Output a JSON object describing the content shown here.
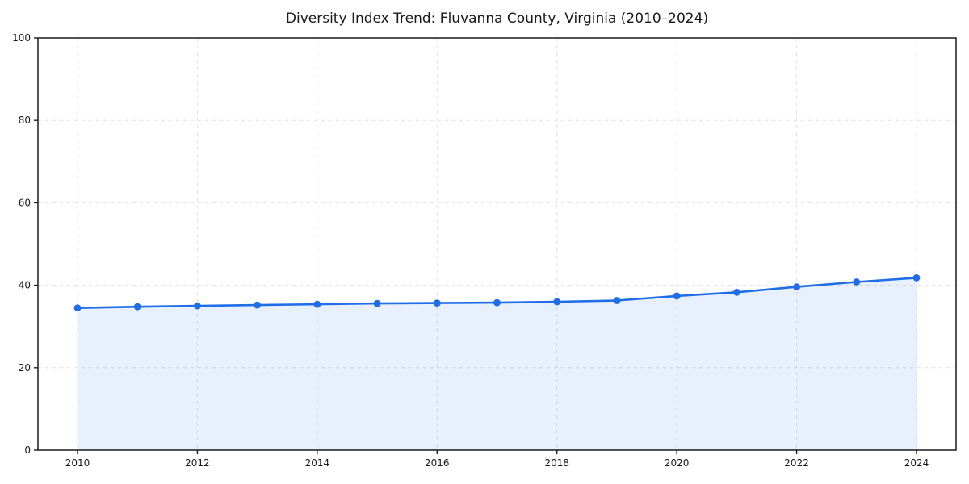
{
  "chart_data": {
    "type": "line",
    "title": "Diversity Index Trend: Fluvanna County, Virginia (2010–2024)",
    "xlabel": "",
    "ylabel": "",
    "x": [
      2010,
      2011,
      2012,
      2013,
      2014,
      2015,
      2016,
      2017,
      2018,
      2019,
      2020,
      2021,
      2022,
      2023,
      2024
    ],
    "series": [
      {
        "name": "Diversity Index",
        "values": [
          34.5,
          34.8,
          35.0,
          35.2,
          35.4,
          35.6,
          35.7,
          35.8,
          36.0,
          36.3,
          37.4,
          38.3,
          39.6,
          40.8,
          41.8
        ]
      }
    ],
    "ylim": [
      0,
      100
    ],
    "yticks": [
      0,
      20,
      40,
      60,
      80,
      100
    ],
    "xticks": [
      2010,
      2012,
      2014,
      2016,
      2018,
      2020,
      2022,
      2024
    ],
    "grid": true,
    "grid_style": "dashed",
    "legend": false,
    "area_fill": true,
    "colors": {
      "line": "#1f6ee8",
      "marker": "#1f6ee8",
      "fill": "rgba(31,110,232,0.10)",
      "grid": "#e0e0e0",
      "spine": "#1a1a1a",
      "tick_text": "#1a1a1a",
      "background": "#ffffff"
    }
  }
}
